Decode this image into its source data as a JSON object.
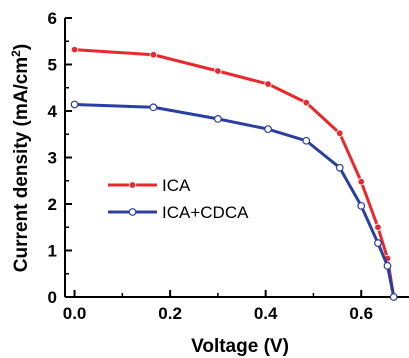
{
  "chart_data": {
    "type": "line",
    "xlabel": "Voltage (V)",
    "ylabel_main": "Current density (mA/cm",
    "ylabel_sup": "2",
    "ylabel_end": ")",
    "xlim": [
      -0.02,
      0.7
    ],
    "ylim": [
      0,
      6
    ],
    "xticks": [
      0.0,
      0.2,
      0.4,
      0.6
    ],
    "xtick_labels": [
      "0.0",
      "0.2",
      "0.4",
      "0.6"
    ],
    "yticks": [
      0,
      1,
      2,
      3,
      4,
      5,
      6
    ],
    "ytick_labels": [
      "0",
      "1",
      "2",
      "3",
      "4",
      "5",
      "6"
    ],
    "grid": false,
    "legend_position": "lower-left",
    "series": [
      {
        "name": "ICA",
        "color": "#e8282c",
        "marker": "filled-circle",
        "x": [
          0.0,
          0.165,
          0.3,
          0.405,
          0.485,
          0.555,
          0.6,
          0.635,
          0.655,
          0.668
        ],
        "y": [
          5.32,
          5.21,
          4.86,
          4.58,
          4.18,
          3.52,
          2.48,
          1.5,
          0.83,
          0.0
        ]
      },
      {
        "name": "ICA+CDCA",
        "color": "#2a3fa0",
        "marker": "open-circle",
        "x": [
          0.0,
          0.165,
          0.3,
          0.405,
          0.485,
          0.555,
          0.6,
          0.635,
          0.655,
          0.668
        ],
        "y": [
          4.14,
          4.08,
          3.83,
          3.61,
          3.36,
          2.78,
          1.96,
          1.16,
          0.67,
          0.0
        ]
      }
    ]
  }
}
